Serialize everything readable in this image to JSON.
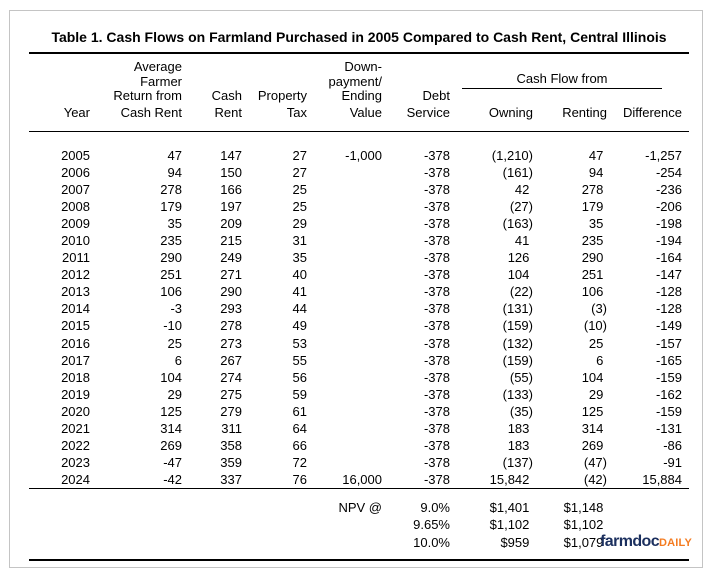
{
  "title": "Table 1. Cash Flows on Farmland Purchased in 2005 Compared to Cash Rent, Central Illinois",
  "header": {
    "c2_top": "Average\nFarmer\nReturn from",
    "c3_top": "Cash",
    "c4_top": "Property",
    "c5_top": "Down-\npayment/\nEnding",
    "c6_top": "Debt",
    "group_label": "Cash Flow from",
    "c1_bottom": "Year",
    "c2_bottom": "Cash Rent",
    "c3_bottom": "Rent",
    "c4_bottom": "Tax",
    "c5_bottom": "Value",
    "c6_bottom": "Service",
    "c7_bottom": "Owning",
    "c8_bottom": "Renting",
    "c9_bottom": "Difference"
  },
  "rows": [
    [
      "2005",
      "47",
      "147",
      "27",
      "-1,000",
      "-378",
      "(1,210)",
      "47 ",
      "-1,257"
    ],
    [
      "2006",
      "94",
      "150",
      "27",
      "",
      "-378",
      "(161)",
      "94 ",
      "-254"
    ],
    [
      "2007",
      "278",
      "166",
      "25",
      "",
      "-378",
      "42 ",
      "278 ",
      "-236"
    ],
    [
      "2008",
      "179",
      "197",
      "25",
      "",
      "-378",
      "(27)",
      "179 ",
      "-206"
    ],
    [
      "2009",
      "35",
      "209",
      "29",
      "",
      "-378",
      "(163)",
      "35 ",
      "-198"
    ],
    [
      "2010",
      "235",
      "215",
      "31",
      "",
      "-378",
      "41 ",
      "235 ",
      "-194"
    ],
    [
      "2011",
      "290",
      "249",
      "35",
      "",
      "-378",
      "126 ",
      "290 ",
      "-164"
    ],
    [
      "2012",
      "251",
      "271",
      "40",
      "",
      "-378",
      "104 ",
      "251 ",
      "-147"
    ],
    [
      "2013",
      "106",
      "290",
      "41",
      "",
      "-378",
      "(22)",
      "106 ",
      "-128"
    ],
    [
      "2014",
      "-3",
      "293",
      "44",
      "",
      "-378",
      "(131)",
      "(3)",
      "-128"
    ],
    [
      "2015",
      "-10",
      "278",
      "49",
      "",
      "-378",
      "(159)",
      "(10)",
      "-149"
    ],
    [
      "2016",
      "25",
      "273",
      "53",
      "",
      "-378",
      "(132)",
      "25 ",
      "-157"
    ],
    [
      "2017",
      "6",
      "267",
      "55",
      "",
      "-378",
      "(159)",
      "6 ",
      "-165"
    ],
    [
      "2018",
      "104",
      "274",
      "56",
      "",
      "-378",
      "(55)",
      "104 ",
      "-159"
    ],
    [
      "2019",
      "29",
      "275",
      "59",
      "",
      "-378",
      "(133)",
      "29 ",
      "-162"
    ],
    [
      "2020",
      "125",
      "279",
      "61",
      "",
      "-378",
      "(35)",
      "125 ",
      "-159"
    ],
    [
      "2021",
      "314",
      "311",
      "64",
      "",
      "-378",
      "183 ",
      "314 ",
      "-131"
    ],
    [
      "2022",
      "269",
      "358",
      "66",
      "",
      "-378",
      "183 ",
      "269 ",
      "-86"
    ],
    [
      "2023",
      "-47",
      "359",
      "72",
      "",
      "-378",
      "(137)",
      "(47)",
      "-91"
    ],
    [
      "2024",
      "-42",
      "337",
      "76",
      "16,000",
      "-378",
      "15,842 ",
      "(42)",
      "15,884"
    ]
  ],
  "npv_rows": [
    [
      "",
      "",
      "",
      "",
      "NPV @",
      "9.0%",
      "$1,401 ",
      "$1,148 ",
      ""
    ],
    [
      "",
      "",
      "",
      "",
      "",
      "9.65%",
      "$1,102 ",
      "$1,102 ",
      ""
    ],
    [
      "",
      "",
      "",
      "",
      "",
      "10.0%",
      "$959 ",
      "$1,079 ",
      ""
    ]
  ],
  "logo": {
    "part1": "farmdoc",
    "part2": "DAILY",
    "navy": "#1B2F5E",
    "orange": "#F47B20"
  }
}
